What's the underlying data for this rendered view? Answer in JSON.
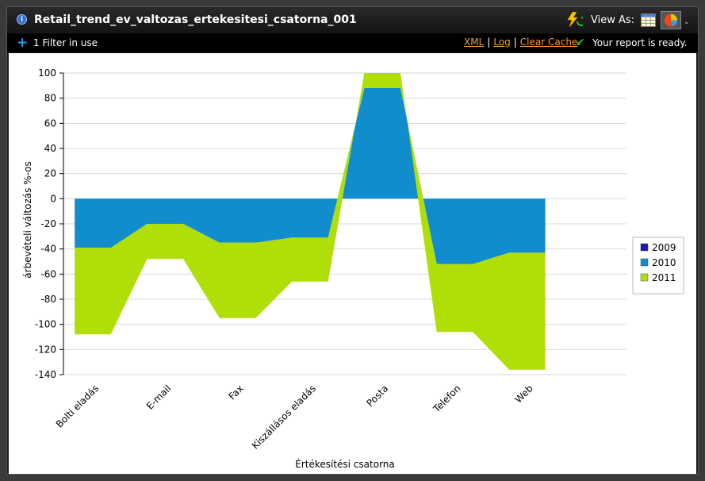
{
  "header": {
    "title": "Retail_trend_ev_valtozas_ertekesitesi_csatorna_001",
    "view_as_label": "View As:",
    "filter_label": "1 Filter in use",
    "links": [
      "XML",
      "Log",
      "Clear Cache"
    ],
    "status": "Your report is ready."
  },
  "icons": {
    "info": "info-icon",
    "bolt": "refresh-bolt-icon",
    "grid": "table-view-icon",
    "pie": "pie-chart-view-icon",
    "dropdown": "chevron-down-icon",
    "plus": "plus-icon",
    "check": "check-icon"
  },
  "colors": {
    "2009": "#1a1ab8",
    "2010": "#118ccc",
    "2011": "#b0de09"
  },
  "chart_data": {
    "type": "area",
    "title": "",
    "xlabel": "Értékesítési csatorna",
    "ylabel": "árbevételi változás %-os",
    "categories": [
      "Bolti eladás",
      "E-mail",
      "Fax",
      "Kiszállásos eladás",
      "Posta",
      "Telefon",
      "Web"
    ],
    "ylim": [
      -140,
      100
    ],
    "yticks": [
      100,
      80,
      60,
      40,
      20,
      0,
      -20,
      -40,
      -60,
      -80,
      -100,
      -120,
      -140
    ],
    "stacked": true,
    "grid": true,
    "legend_position": "right",
    "series": [
      {
        "name": "2009",
        "values": [
          0,
          0,
          0,
          0,
          0,
          0,
          0
        ]
      },
      {
        "name": "2010",
        "values": [
          -39,
          -20,
          -35,
          -31,
          88,
          -52,
          -43
        ]
      },
      {
        "name": "2011",
        "values": [
          -69,
          -28,
          -60,
          -35,
          12,
          -54,
          -93
        ]
      }
    ]
  }
}
